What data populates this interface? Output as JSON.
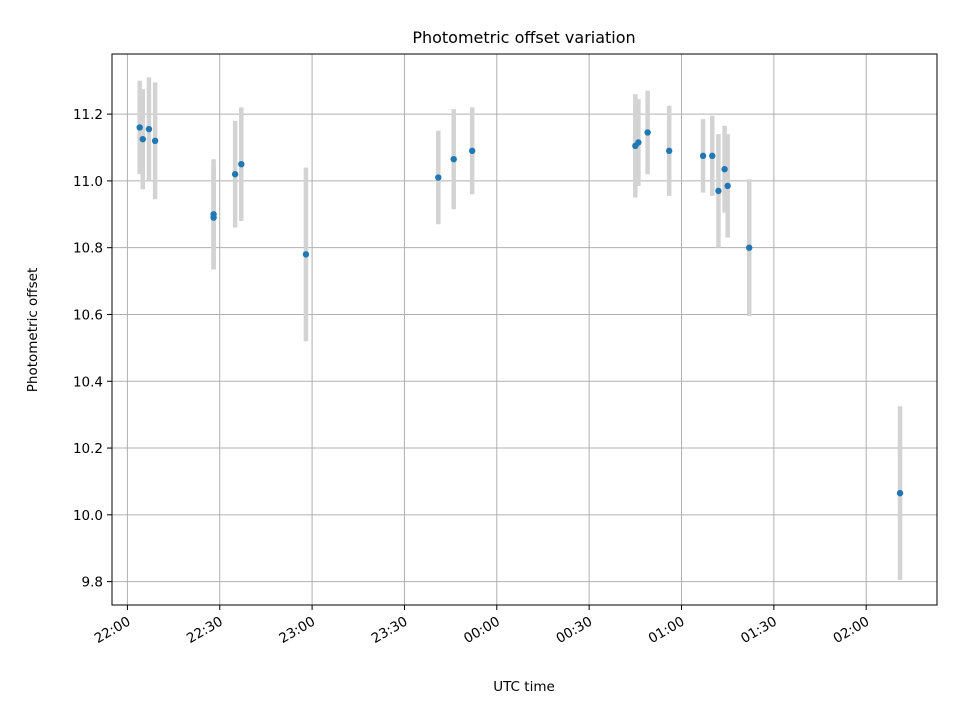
{
  "chart_data": {
    "type": "scatter",
    "title": "Photometric offset variation",
    "xlabel": "UTC time",
    "ylabel": "Photometric offset",
    "x_ticks": [
      "22:00",
      "22:30",
      "23:00",
      "23:30",
      "00:00",
      "00:30",
      "01:00",
      "01:30",
      "02:00"
    ],
    "y_ticks": [
      "9.8",
      "10.0",
      "10.2",
      "10.4",
      "10.6",
      "10.8",
      "11.0",
      "11.2"
    ],
    "xlim": [
      "21:55",
      "02:23"
    ],
    "ylim": [
      9.73,
      11.38
    ],
    "grid": true,
    "point_color": "#1f77b4",
    "errorbar_color": "#d3d3d3",
    "series": [
      {
        "points": [
          {
            "t": "22:04",
            "y": 11.16,
            "err": 0.14
          },
          {
            "t": "22:05",
            "y": 11.125,
            "err": 0.15
          },
          {
            "t": "22:07",
            "y": 11.155,
            "err": 0.155
          },
          {
            "t": "22:09",
            "y": 11.12,
            "err": 0.175
          },
          {
            "t": "22:28",
            "y": 10.89,
            "err": 0.155
          },
          {
            "t": "22:28",
            "y": 10.9,
            "err": 0.165
          },
          {
            "t": "22:35",
            "y": 11.02,
            "err": 0.16
          },
          {
            "t": "22:37",
            "y": 11.05,
            "err": 0.17
          },
          {
            "t": "22:58",
            "y": 10.78,
            "err": 0.26
          },
          {
            "t": "23:41",
            "y": 11.01,
            "err": 0.14
          },
          {
            "t": "23:46",
            "y": 11.065,
            "err": 0.15
          },
          {
            "t": "23:52",
            "y": 11.09,
            "err": 0.13
          },
          {
            "t": "00:45",
            "y": 11.105,
            "err": 0.155
          },
          {
            "t": "00:46",
            "y": 11.115,
            "err": 0.13
          },
          {
            "t": "00:49",
            "y": 11.145,
            "err": 0.125
          },
          {
            "t": "00:56",
            "y": 11.09,
            "err": 0.135
          },
          {
            "t": "01:07",
            "y": 11.075,
            "err": 0.11
          },
          {
            "t": "01:10",
            "y": 11.075,
            "err": 0.12
          },
          {
            "t": "01:12",
            "y": 10.97,
            "err": 0.17
          },
          {
            "t": "01:14",
            "y": 11.035,
            "err": 0.13
          },
          {
            "t": "01:15",
            "y": 10.985,
            "err": 0.155
          },
          {
            "t": "01:22",
            "y": 10.8,
            "err": 0.205
          },
          {
            "t": "02:11",
            "y": 10.065,
            "err": 0.26
          }
        ]
      }
    ]
  }
}
